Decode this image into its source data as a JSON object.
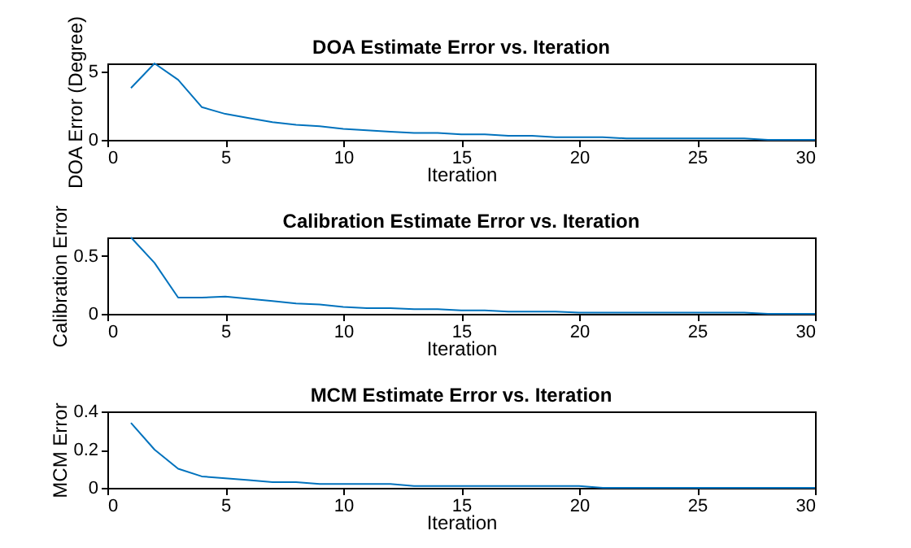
{
  "chart_data": [
    {
      "type": "line",
      "title": "DOA Estimate Error vs. Iteration",
      "xlabel": "Iteration",
      "ylabel": "DOA Error (Degree)",
      "x": [
        1,
        2,
        3,
        4,
        5,
        6,
        7,
        8,
        9,
        10,
        11,
        12,
        13,
        14,
        15,
        16,
        17,
        18,
        19,
        20,
        21,
        22,
        23,
        24,
        25,
        26,
        27,
        28,
        29,
        30
      ],
      "series": [
        {
          "color": "#0072bd",
          "values": [
            3.8,
            5.6,
            4.4,
            2.4,
            1.9,
            1.6,
            1.3,
            1.1,
            1.0,
            0.8,
            0.7,
            0.6,
            0.5,
            0.5,
            0.4,
            0.4,
            0.3,
            0.3,
            0.2,
            0.2,
            0.2,
            0.1,
            0.1,
            0.1,
            0.1,
            0.1,
            0.1,
            0.0,
            0.0,
            0.0
          ]
        }
      ],
      "xlim": [
        0,
        30
      ],
      "xticks": [
        0,
        5,
        10,
        15,
        20,
        25,
        30
      ],
      "ylim": [
        0,
        5.6
      ],
      "yticks": [
        0,
        5
      ],
      "grid": false
    },
    {
      "type": "line",
      "title": "Calibration Estimate Error vs. Iteration",
      "xlabel": "Iteration",
      "ylabel": "Calibration Error",
      "x": [
        1,
        2,
        3,
        4,
        5,
        6,
        7,
        8,
        9,
        10,
        11,
        12,
        13,
        14,
        15,
        16,
        17,
        18,
        19,
        20,
        21,
        22,
        23,
        24,
        25,
        26,
        27,
        28,
        29,
        30
      ],
      "series": [
        {
          "color": "#0072bd",
          "values": [
            0.66,
            0.44,
            0.14,
            0.14,
            0.15,
            0.13,
            0.11,
            0.09,
            0.08,
            0.06,
            0.05,
            0.05,
            0.04,
            0.04,
            0.03,
            0.03,
            0.02,
            0.02,
            0.02,
            0.01,
            0.01,
            0.01,
            0.01,
            0.01,
            0.01,
            0.01,
            0.01,
            0.0,
            0.0,
            0.0
          ]
        }
      ],
      "xlim": [
        0,
        30
      ],
      "xticks": [
        0,
        5,
        10,
        15,
        20,
        25,
        30
      ],
      "ylim": [
        0,
        0.66
      ],
      "yticks": [
        0,
        0.5
      ],
      "grid": false
    },
    {
      "type": "line",
      "title": "MCM Estimate Error vs. Iteration",
      "xlabel": "Iteration",
      "ylabel": "MCM Error",
      "x": [
        1,
        2,
        3,
        4,
        5,
        6,
        7,
        8,
        9,
        10,
        11,
        12,
        13,
        14,
        15,
        16,
        17,
        18,
        19,
        20,
        21,
        22,
        23,
        24,
        25,
        26,
        27,
        28,
        29,
        30
      ],
      "series": [
        {
          "color": "#0072bd",
          "values": [
            0.34,
            0.2,
            0.1,
            0.06,
            0.05,
            0.04,
            0.03,
            0.03,
            0.02,
            0.02,
            0.02,
            0.02,
            0.01,
            0.01,
            0.01,
            0.01,
            0.01,
            0.01,
            0.01,
            0.01,
            0.0,
            0.0,
            0.0,
            0.0,
            0.0,
            0.0,
            0.0,
            0.0,
            0.0,
            0.0
          ]
        }
      ],
      "xlim": [
        0,
        30
      ],
      "xticks": [
        0,
        5,
        10,
        15,
        20,
        25,
        30
      ],
      "ylim": [
        0,
        0.4
      ],
      "yticks": [
        0,
        0.2,
        0.4
      ],
      "grid": false
    }
  ]
}
